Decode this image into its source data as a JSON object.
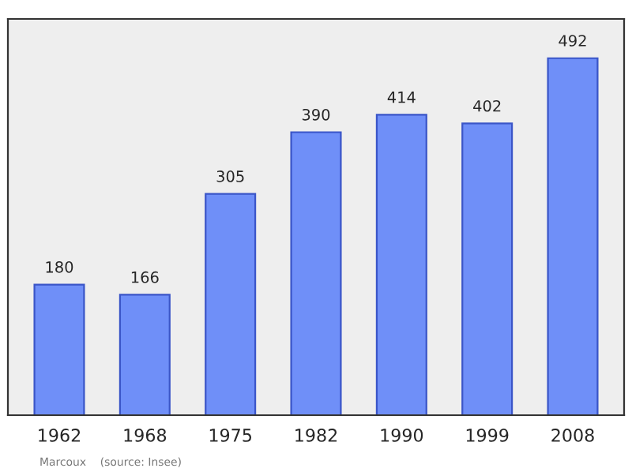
{
  "chart_data": {
    "type": "bar",
    "categories": [
      "1962",
      "1968",
      "1975",
      "1982",
      "1990",
      "1999",
      "2008"
    ],
    "values": [
      180,
      166,
      305,
      390,
      414,
      402,
      492
    ],
    "color": "#6f8ff8",
    "data_labels": true,
    "grid": false,
    "annotations": [
      "Marcoux    (source: Insee)"
    ]
  }
}
